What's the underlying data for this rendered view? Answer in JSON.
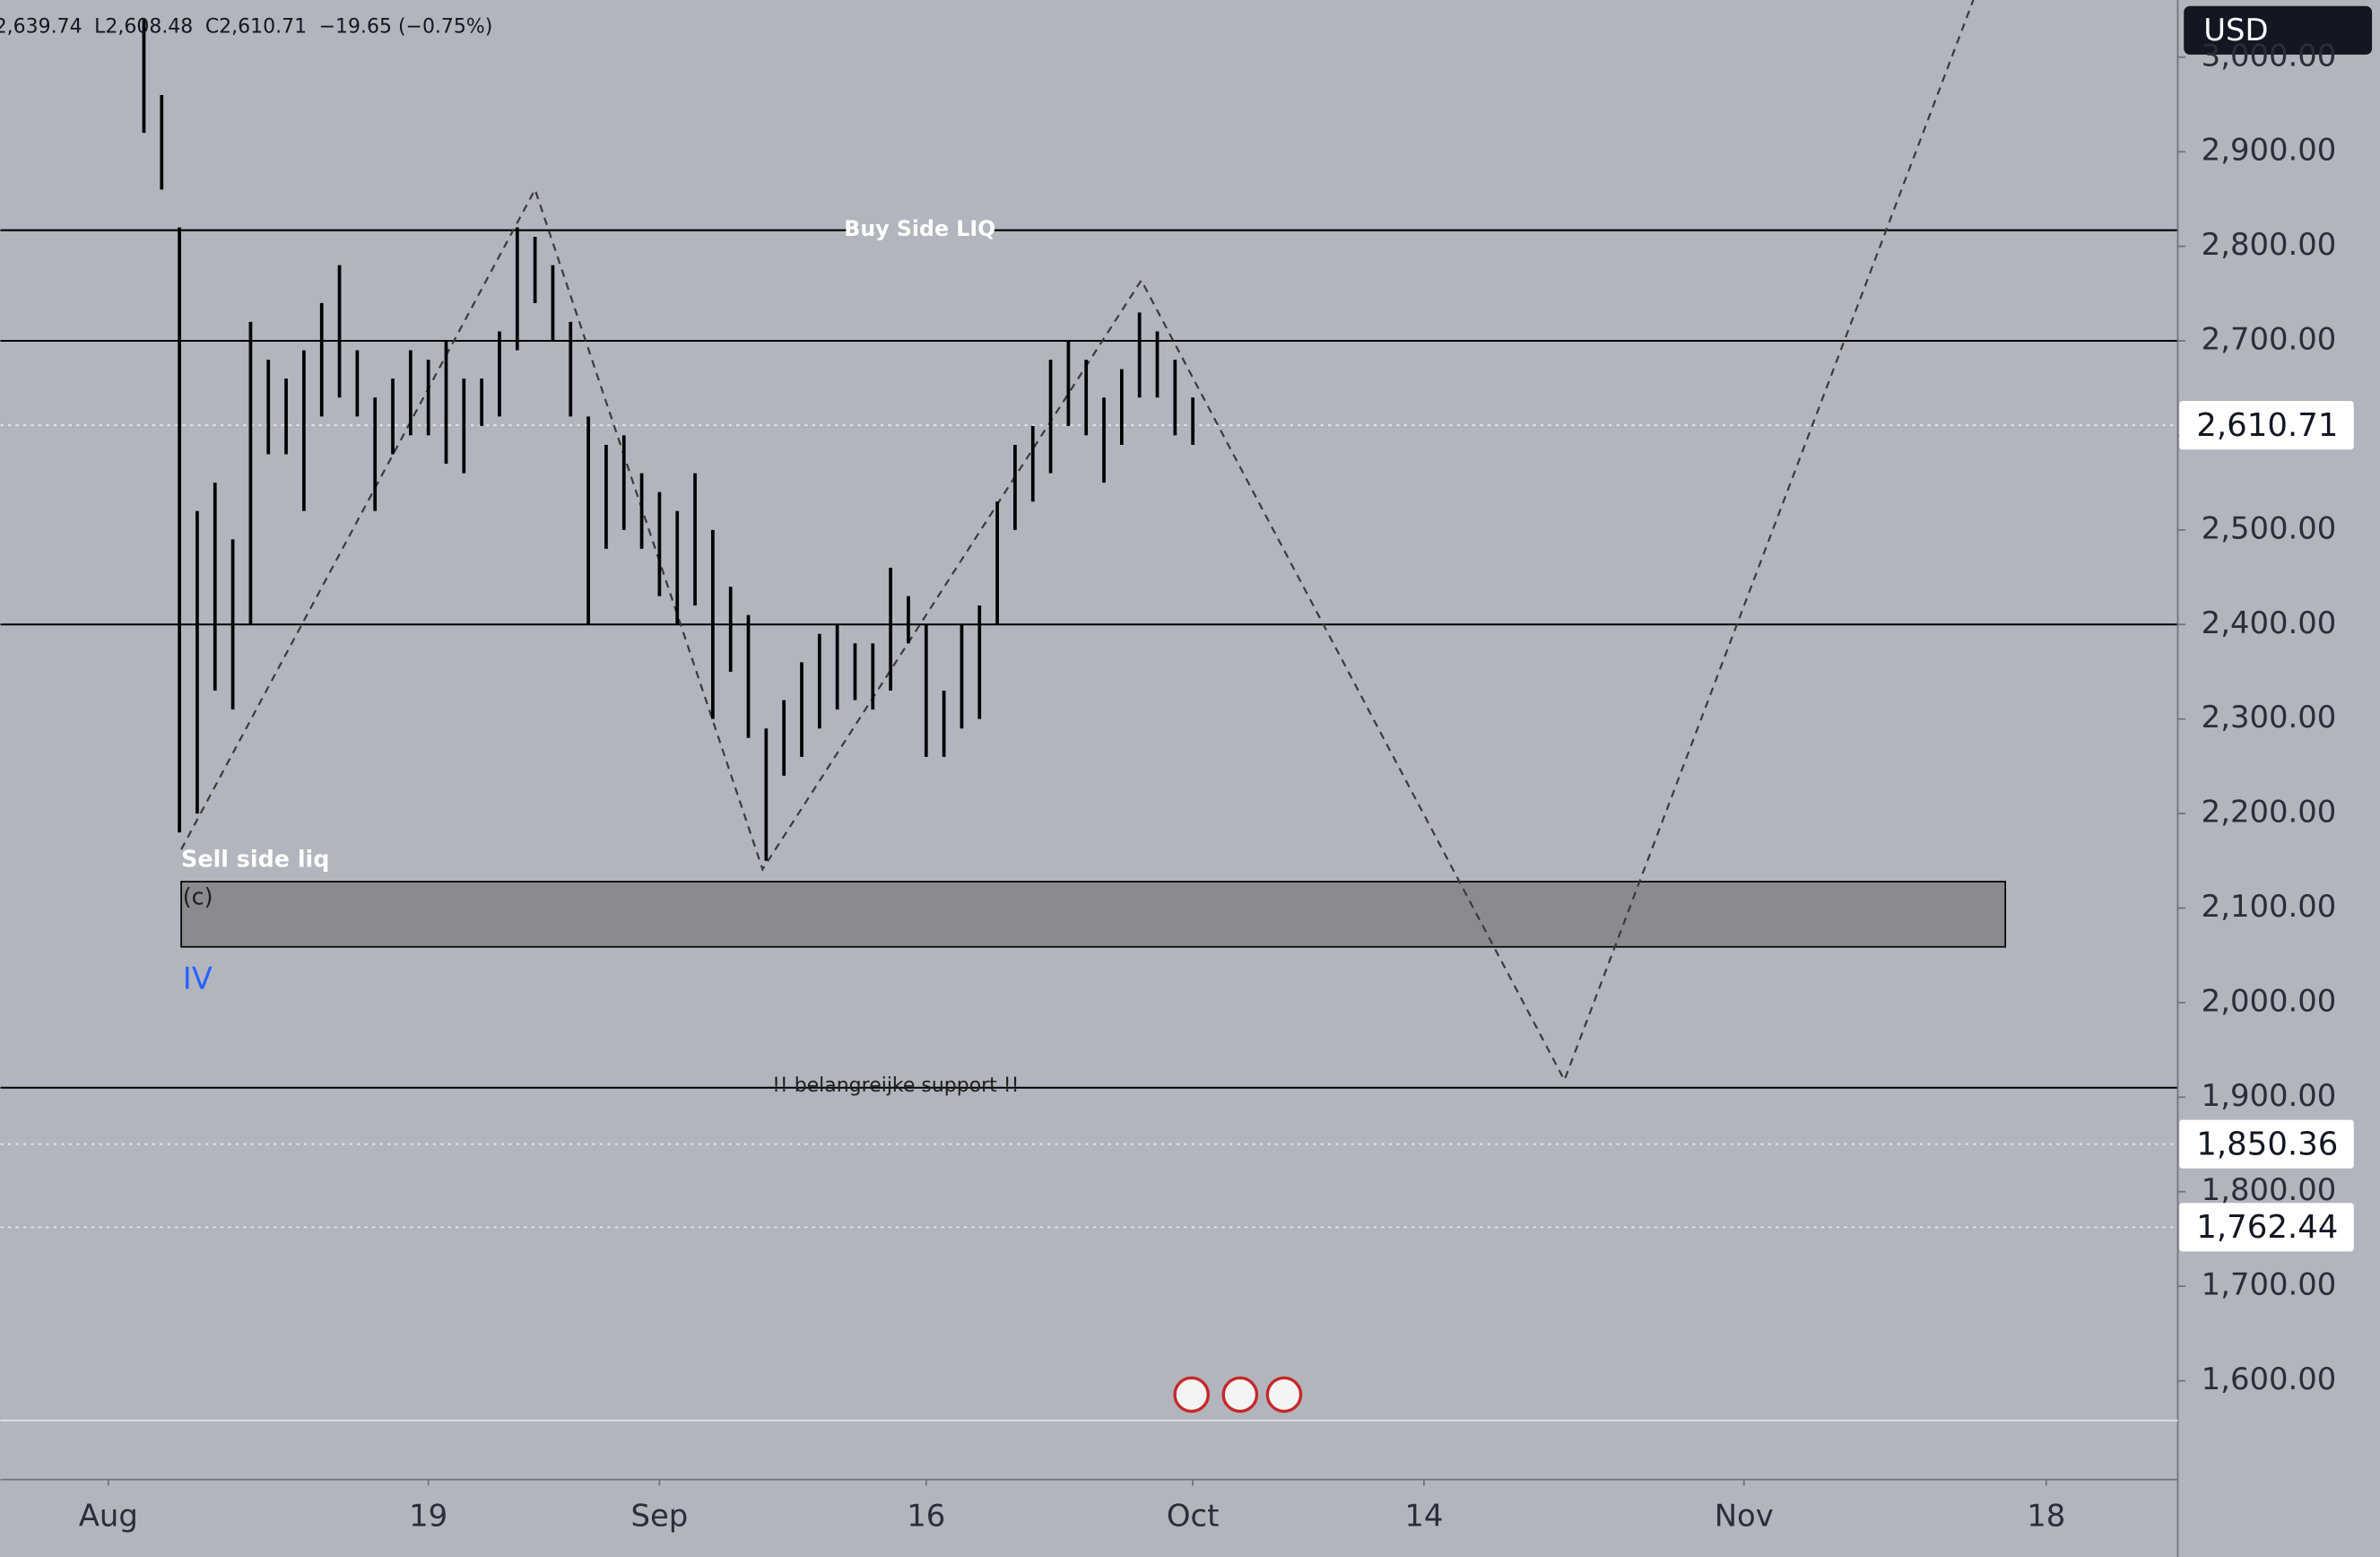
{
  "chart_data": {
    "type": "candlestick",
    "header": [
      "2,639.74",
      "L2,608.48",
      "C2,610.71",
      "−19.65 (−0.75%)"
    ],
    "currency": "USD",
    "xlim": [
      -6.07,
      116.4
    ],
    "xticks": [
      {
        "value": 0,
        "label": "Aug"
      },
      {
        "value": 18,
        "label": "19"
      },
      {
        "value": 31,
        "label": "Sep"
      },
      {
        "value": 46,
        "label": "16"
      },
      {
        "value": 61,
        "label": "Oct"
      },
      {
        "value": 74,
        "label": "14"
      },
      {
        "value": 92,
        "label": "Nov"
      },
      {
        "value": 109,
        "label": "18"
      }
    ],
    "ylim": [
      1495.5,
      3060.5
    ],
    "yticks": [
      {
        "value": 1600,
        "label": "1,600.00"
      },
      {
        "value": 1700,
        "label": "1,700.00"
      },
      {
        "value": 1800,
        "label": "1,800.00"
      },
      {
        "value": 1900,
        "label": "1,900.00"
      },
      {
        "value": 2000,
        "label": "2,000.00"
      },
      {
        "value": 2100,
        "label": "2,100.00"
      },
      {
        "value": 2200,
        "label": "2,200.00"
      },
      {
        "value": 2300,
        "label": "2,300.00"
      },
      {
        "value": 2400,
        "label": "2,400.00"
      },
      {
        "value": 2500,
        "label": "2,500.00"
      },
      {
        "value": 2600,
        "label": "2,600.00"
      },
      {
        "value": 2700,
        "label": "2,700.00"
      },
      {
        "value": 2800,
        "label": "2,800.00"
      },
      {
        "value": 2900,
        "label": "2,900.00"
      },
      {
        "value": 3000,
        "label": "3,000.00"
      }
    ],
    "color": "#000000",
    "series": [
      {
        "x": [
          2,
          3,
          4,
          5,
          6,
          7,
          8,
          9,
          10,
          11,
          12,
          13,
          14,
          15,
          16,
          17,
          18,
          19,
          20,
          21,
          22,
          23,
          24,
          25,
          26,
          27,
          28,
          29,
          30,
          31,
          32,
          33,
          34,
          35,
          36,
          37,
          38,
          39,
          40,
          41,
          42,
          43,
          44,
          45,
          46,
          47,
          48,
          49,
          50,
          51,
          52,
          53,
          54,
          55,
          56,
          57,
          58,
          59,
          60,
          61
        ],
        "high": [
          3040,
          2960,
          2820,
          2520,
          2550,
          2490,
          2720,
          2680,
          2660,
          2690,
          2740,
          2780,
          2690,
          2640,
          2660,
          2690,
          2680,
          2700,
          2660,
          2660,
          2710,
          2820,
          2810,
          2780,
          2720,
          2620,
          2590,
          2600,
          2560,
          2540,
          2520,
          2560,
          2500,
          2440,
          2410,
          2290,
          2320,
          2360,
          2390,
          2400,
          2380,
          2380,
          2460,
          2430,
          2400,
          2330,
          2400,
          2420,
          2530,
          2590,
          2610,
          2680,
          2700,
          2680,
          2640,
          2670,
          2730,
          2710,
          2680,
          2640
        ],
        "low": [
          2920,
          2860,
          2180,
          2200,
          2330,
          2310,
          2400,
          2580,
          2580,
          2520,
          2620,
          2640,
          2620,
          2520,
          2580,
          2600,
          2600,
          2570,
          2560,
          2610,
          2620,
          2690,
          2740,
          2700,
          2620,
          2400,
          2480,
          2500,
          2480,
          2430,
          2400,
          2420,
          2300,
          2350,
          2280,
          2150,
          2240,
          2260,
          2290,
          2310,
          2320,
          2310,
          2330,
          2380,
          2260,
          2260,
          2290,
          2300,
          2400,
          2500,
          2530,
          2560,
          2610,
          2600,
          2550,
          2590,
          2640,
          2640,
          2600,
          2590
        ]
      }
    ],
    "levels": [
      {
        "value": 2817,
        "text": "Buy Side LIQ"
      },
      {
        "value": 2700
      },
      {
        "value": 2400
      },
      {
        "value": 1910,
        "text": "!! belangreijke support !!"
      }
    ],
    "price_labels": [
      {
        "value": 2610.71,
        "label": "2,610.71"
      },
      {
        "value": 1850.36,
        "label": "1,850.36"
      },
      {
        "value": 1762.44,
        "label": "1,762.44"
      }
    ],
    "zone": {
      "xlim": [
        4.1,
        106.7
      ],
      "ylim": [
        2059,
        2128
      ],
      "top_label": "Sell side liq",
      "inner_label": "(c)",
      "wave_label": "IV"
    },
    "projection": {
      "x": [
        4.1,
        24.0,
        36.8,
        58.1,
        81.9,
        104.9
      ],
      "y": [
        2162,
        2860,
        2141,
        2764,
        1918,
        3060.5
      ]
    }
  }
}
